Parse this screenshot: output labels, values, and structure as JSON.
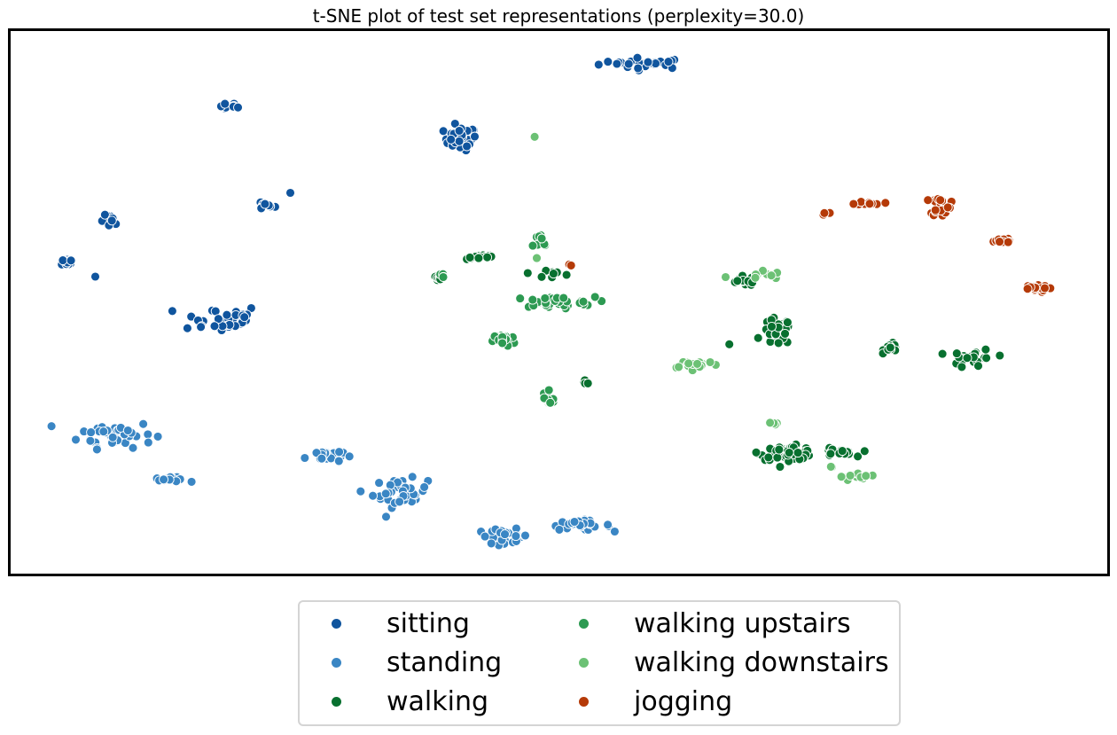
{
  "chart_data": {
    "type": "scatter",
    "title": "t-SNE plot of test set representations (perplexity=30.0)",
    "xlabel": "",
    "ylabel": "",
    "xlim": [
      0,
      100
    ],
    "ylim": [
      0,
      100
    ],
    "axis_ticks": "none",
    "grid": false,
    "legend_position": "bottom-center, outside plot, 2 columns",
    "series": [
      {
        "name": "sitting",
        "color": "#10559e",
        "clusters": [
          {
            "x": 58.0,
            "y": 94.5,
            "sx": 4.2,
            "sy": 1.0,
            "n": 28
          },
          {
            "x": 20.0,
            "y": 86.5,
            "sx": 0.9,
            "sy": 0.6,
            "n": 12
          },
          {
            "x": 41.0,
            "y": 80.5,
            "sx": 1.5,
            "sy": 2.2,
            "n": 38
          },
          {
            "x": 23.0,
            "y": 68.0,
            "sx": 1.0,
            "sy": 0.8,
            "n": 10
          },
          {
            "x": 25.3,
            "y": 70.3,
            "sx": 0.2,
            "sy": 0.2,
            "n": 1
          },
          {
            "x": 9.0,
            "y": 65.0,
            "sx": 0.9,
            "sy": 1.2,
            "n": 12
          },
          {
            "x": 5.0,
            "y": 57.5,
            "sx": 0.5,
            "sy": 0.6,
            "n": 12
          },
          {
            "x": 7.4,
            "y": 54.8,
            "sx": 0.2,
            "sy": 0.2,
            "n": 1
          },
          {
            "x": 19.0,
            "y": 47.0,
            "sx": 3.8,
            "sy": 2.6,
            "n": 34
          }
        ]
      },
      {
        "name": "standing",
        "color": "#3a86c4",
        "clusters": [
          {
            "x": 9.5,
            "y": 25.5,
            "sx": 3.4,
            "sy": 2.5,
            "n": 45
          },
          {
            "x": 14.5,
            "y": 17.0,
            "sx": 1.4,
            "sy": 0.4,
            "n": 16
          },
          {
            "x": 28.5,
            "y": 21.5,
            "sx": 1.7,
            "sy": 1.3,
            "n": 22
          },
          {
            "x": 35.5,
            "y": 14.5,
            "sx": 2.5,
            "sy": 2.6,
            "n": 40
          },
          {
            "x": 45.0,
            "y": 6.5,
            "sx": 2.4,
            "sy": 1.3,
            "n": 30
          },
          {
            "x": 52.0,
            "y": 8.5,
            "sx": 2.8,
            "sy": 0.9,
            "n": 28
          }
        ]
      },
      {
        "name": "walking",
        "color": "#08702f",
        "clusters": [
          {
            "x": 43.0,
            "y": 58.5,
            "sx": 1.4,
            "sy": 0.5,
            "n": 16
          },
          {
            "x": 39.0,
            "y": 54.5,
            "sx": 0.4,
            "sy": 0.6,
            "n": 10
          },
          {
            "x": 49.5,
            "y": 55.5,
            "sx": 2.2,
            "sy": 1.5,
            "n": 9
          },
          {
            "x": 52.5,
            "y": 35.0,
            "sx": 0.4,
            "sy": 0.3,
            "n": 6
          },
          {
            "x": 67.0,
            "y": 54.0,
            "sx": 1.4,
            "sy": 0.9,
            "n": 16
          },
          {
            "x": 70.0,
            "y": 44.5,
            "sx": 1.3,
            "sy": 2.5,
            "n": 45
          },
          {
            "x": 65.5,
            "y": 42.0,
            "sx": 0.3,
            "sy": 0.3,
            "n": 1
          },
          {
            "x": 80.5,
            "y": 41.5,
            "sx": 0.7,
            "sy": 0.8,
            "n": 15
          },
          {
            "x": 88.0,
            "y": 39.5,
            "sx": 2.0,
            "sy": 1.8,
            "n": 24
          },
          {
            "x": 71.0,
            "y": 22.0,
            "sx": 2.5,
            "sy": 1.3,
            "n": 60
          },
          {
            "x": 75.5,
            "y": 22.0,
            "sx": 1.6,
            "sy": 0.8,
            "n": 22
          }
        ]
      },
      {
        "name": "walking upstairs",
        "color": "#2d9a52",
        "clusters": [
          {
            "x": 49.5,
            "y": 50.0,
            "sx": 3.8,
            "sy": 1.0,
            "n": 35
          },
          {
            "x": 45.0,
            "y": 43.0,
            "sx": 1.0,
            "sy": 1.2,
            "n": 26
          },
          {
            "x": 49.0,
            "y": 32.0,
            "sx": 0.6,
            "sy": 2.5,
            "n": 14
          },
          {
            "x": 48.5,
            "y": 61.5,
            "sx": 1.0,
            "sy": 2.0,
            "n": 8
          },
          {
            "x": 39.5,
            "y": 55.0,
            "sx": 0.4,
            "sy": 0.4,
            "n": 4
          }
        ]
      },
      {
        "name": "walking downstairs",
        "color": "#6cc175",
        "clusters": [
          {
            "x": 47.8,
            "y": 80.8,
            "sx": 0.2,
            "sy": 0.2,
            "n": 1
          },
          {
            "x": 47.8,
            "y": 58.3,
            "sx": 0.2,
            "sy": 0.2,
            "n": 1
          },
          {
            "x": 62.5,
            "y": 38.5,
            "sx": 2.4,
            "sy": 0.8,
            "n": 22
          },
          {
            "x": 77.5,
            "y": 17.5,
            "sx": 1.7,
            "sy": 0.7,
            "n": 16
          },
          {
            "x": 69.8,
            "y": 27.5,
            "sx": 0.3,
            "sy": 0.8,
            "n": 4
          },
          {
            "x": 68.0,
            "y": 55.0,
            "sx": 2.5,
            "sy": 1.0,
            "n": 10
          },
          {
            "x": 75.0,
            "y": 19.5,
            "sx": 0.3,
            "sy": 0.3,
            "n": 2
          }
        ]
      },
      {
        "name": "jogging",
        "color": "#b53a08",
        "clusters": [
          {
            "x": 74.5,
            "y": 66.5,
            "sx": 0.7,
            "sy": 0.3,
            "n": 4
          },
          {
            "x": 78.5,
            "y": 68.5,
            "sx": 1.2,
            "sy": 0.3,
            "n": 12
          },
          {
            "x": 85.0,
            "y": 68.0,
            "sx": 0.9,
            "sy": 1.9,
            "n": 22
          },
          {
            "x": 90.5,
            "y": 61.5,
            "sx": 1.3,
            "sy": 0.6,
            "n": 20
          },
          {
            "x": 93.5,
            "y": 52.5,
            "sx": 1.3,
            "sy": 0.6,
            "n": 20
          },
          {
            "x": 50.8,
            "y": 57.0,
            "sx": 0.4,
            "sy": 0.4,
            "n": 2
          }
        ]
      }
    ]
  }
}
